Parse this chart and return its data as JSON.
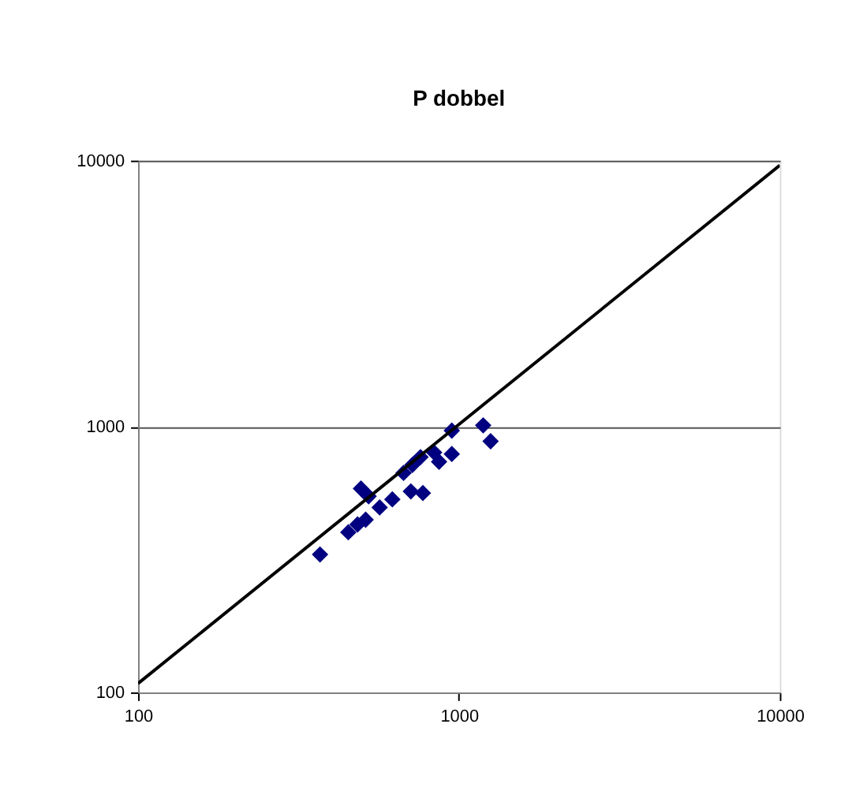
{
  "chart_data": {
    "type": "scatter",
    "title": "P dobbel",
    "log": "xy",
    "xlim": [
      100,
      10000
    ],
    "ylim": [
      100,
      10000
    ],
    "xticks": [
      100,
      1000,
      10000
    ],
    "yticks": [
      100,
      1000,
      10000
    ],
    "grid": "y",
    "marker": "diamond",
    "series": [
      {
        "color": "#000080",
        "x": [
          369,
          452,
          483,
          512,
          495,
          523,
          620,
          566,
          672,
          716,
          759,
          837,
          867,
          950,
          950,
          1190,
          1255,
          708,
          772
        ],
        "values": [
          330,
          400,
          428,
          446,
          584,
          546,
          532,
          496,
          669,
          717,
          767,
          798,
          737,
          788,
          965,
          1010,
          880,
          570,
          562
        ]
      },
      {
        "type": "line",
        "color": "#000000",
        "marker": "none",
        "x": [
          100,
          10000
        ],
        "values": [
          108,
          9600
        ]
      }
    ]
  }
}
